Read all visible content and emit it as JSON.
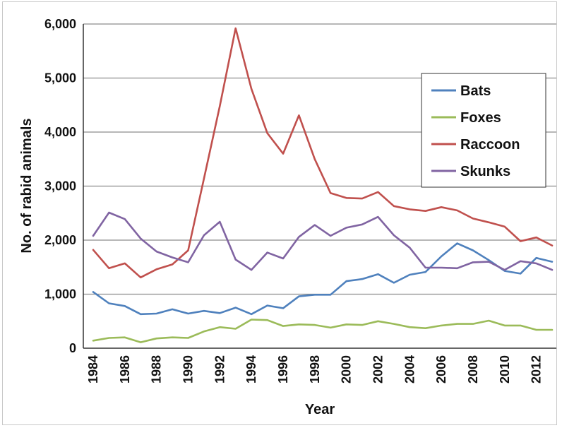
{
  "chart_data": {
    "type": "line",
    "title": "",
    "xlabel": "Year",
    "ylabel": "No. of rabid animals",
    "ylim": [
      0,
      6000
    ],
    "yticks": [
      0,
      1000,
      2000,
      3000,
      4000,
      5000,
      6000
    ],
    "ytick_labels": [
      "0",
      "1,000",
      "2,000",
      "3,000",
      "4,000",
      "5,000",
      "6,000"
    ],
    "xticks": [
      1984,
      1986,
      1988,
      1990,
      1992,
      1994,
      1996,
      1998,
      2000,
      2002,
      2004,
      2006,
      2008,
      2010,
      2012
    ],
    "grid": true,
    "legend_position": "top-right",
    "x": [
      1984,
      1985,
      1986,
      1987,
      1988,
      1989,
      1990,
      1991,
      1992,
      1993,
      1994,
      1995,
      1996,
      1997,
      1998,
      1999,
      2000,
      2001,
      2002,
      2003,
      2004,
      2005,
      2006,
      2007,
      2008,
      2009,
      2010,
      2011,
      2012,
      2013
    ],
    "series": [
      {
        "name": "Bats",
        "color": "#4f81bd",
        "values": [
          1040,
          830,
          780,
          630,
          640,
          720,
          640,
          690,
          650,
          750,
          630,
          790,
          740,
          960,
          990,
          990,
          1240,
          1280,
          1370,
          1210,
          1360,
          1410,
          1700,
          1940,
          1810,
          1630,
          1430,
          1380,
          1670,
          1600
        ]
      },
      {
        "name": "Foxes",
        "color": "#9bbb59",
        "values": [
          140,
          190,
          200,
          110,
          180,
          200,
          190,
          310,
          390,
          360,
          530,
          520,
          410,
          440,
          430,
          380,
          440,
          430,
          500,
          450,
          390,
          370,
          420,
          450,
          450,
          510,
          420,
          420,
          340,
          340
        ]
      },
      {
        "name": "Raccoon",
        "color": "#c0504d",
        "values": [
          1820,
          1480,
          1570,
          1310,
          1460,
          1550,
          1810,
          3140,
          4480,
          5920,
          4800,
          3980,
          3600,
          4310,
          3500,
          2870,
          2780,
          2770,
          2890,
          2630,
          2570,
          2540,
          2610,
          2550,
          2400,
          2330,
          2250,
          1980,
          2050,
          1900
        ]
      },
      {
        "name": "Skunks",
        "color": "#8064a2",
        "values": [
          2080,
          2510,
          2390,
          2030,
          1790,
          1680,
          1590,
          2090,
          2340,
          1640,
          1450,
          1770,
          1660,
          2060,
          2280,
          2080,
          2230,
          2290,
          2430,
          2090,
          1860,
          1490,
          1490,
          1480,
          1590,
          1600,
          1450,
          1610,
          1570,
          1450
        ]
      }
    ]
  }
}
